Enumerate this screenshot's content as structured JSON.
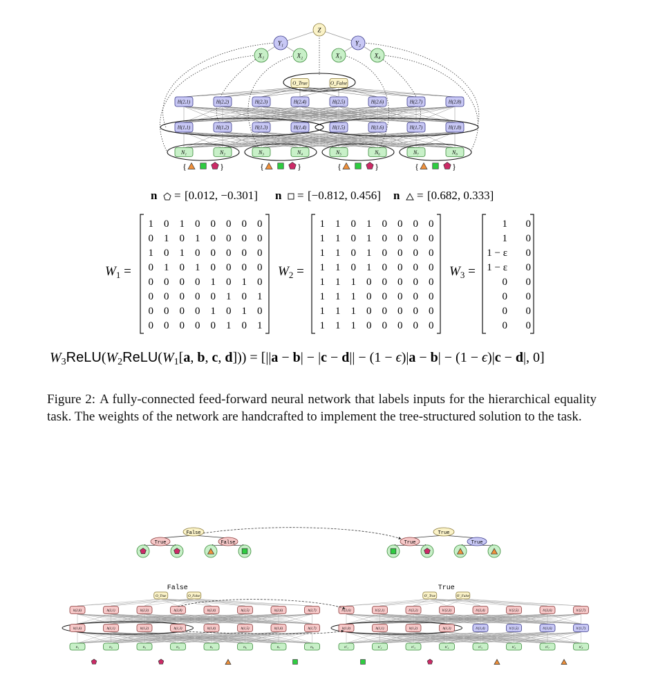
{
  "colors": {
    "green": "#c8f0c8",
    "green_stroke": "#3a8a3a",
    "blue": "#c8c8f5",
    "blue_stroke": "#3a3a8a",
    "yellow": "#fbf3c8",
    "yellow_stroke": "#8a7a3a",
    "pink": "#f6c8c8",
    "pink_stroke": "#8a3a3a",
    "triangle": "#f0903a",
    "square": "#2ecc40",
    "pentagon": "#cc2a66"
  },
  "top_graph": {
    "z": "Z",
    "y_nodes": [
      "Y₁",
      "Y₂"
    ],
    "x_nodes": [
      "X₁",
      "X₂",
      "X₃",
      "X₄"
    ],
    "outputs": [
      "O_True",
      "O_False"
    ],
    "h2": [
      "H(2,1)",
      "H(2,2)",
      "H(2,3)",
      "H(2,4)",
      "H(2,5)",
      "H(2,6)",
      "H(2,7)",
      "H(2,8)"
    ],
    "h1": [
      "H(1,1)",
      "H(1,2)",
      "H(1,3)",
      "H(1,4)",
      "H(1,5)",
      "H(1,6)",
      "H(1,7)",
      "H(1,8)"
    ],
    "inputs": [
      "N₁",
      "N₂",
      "N₃",
      "N₄",
      "N₅",
      "N₆",
      "N₇",
      "N₈"
    ],
    "shape_set": [
      "triangle",
      "square",
      "pentagon"
    ]
  },
  "embeddings": {
    "pentagon": "[0.012, −0.301]",
    "square": "[−0.812, 0.456]",
    "triangle": "[0.682, 0.333]"
  },
  "matrices": {
    "W1": [
      [
        "1",
        "0",
        "1",
        "0",
        "0",
        "0",
        "0",
        "0"
      ],
      [
        "0",
        "1",
        "0",
        "1",
        "0",
        "0",
        "0",
        "0"
      ],
      [
        "1",
        "0",
        "1",
        "0",
        "0",
        "0",
        "0",
        "0"
      ],
      [
        "0",
        "1",
        "0",
        "1",
        "0",
        "0",
        "0",
        "0"
      ],
      [
        "0",
        "0",
        "0",
        "0",
        "1",
        "0",
        "1",
        "0"
      ],
      [
        "0",
        "0",
        "0",
        "0",
        "0",
        "1",
        "0",
        "1"
      ],
      [
        "0",
        "0",
        "0",
        "0",
        "1",
        "0",
        "1",
        "0"
      ],
      [
        "0",
        "0",
        "0",
        "0",
        "0",
        "1",
        "0",
        "1"
      ]
    ],
    "W2": [
      [
        "1",
        "1",
        "0",
        "1",
        "0",
        "0",
        "0",
        "0"
      ],
      [
        "1",
        "1",
        "0",
        "1",
        "0",
        "0",
        "0",
        "0"
      ],
      [
        "1",
        "1",
        "0",
        "1",
        "0",
        "0",
        "0",
        "0"
      ],
      [
        "1",
        "1",
        "0",
        "1",
        "0",
        "0",
        "0",
        "0"
      ],
      [
        "1",
        "1",
        "1",
        "0",
        "0",
        "0",
        "0",
        "0"
      ],
      [
        "1",
        "1",
        "1",
        "0",
        "0",
        "0",
        "0",
        "0"
      ],
      [
        "1",
        "1",
        "1",
        "0",
        "0",
        "0",
        "0",
        "0"
      ],
      [
        "1",
        "1",
        "1",
        "0",
        "0",
        "0",
        "0",
        "0"
      ]
    ],
    "W3": [
      [
        "1",
        "0"
      ],
      [
        "1",
        "0"
      ],
      [
        "1 − ε",
        "0"
      ],
      [
        "1 − ε",
        "0"
      ],
      [
        "0",
        "0"
      ],
      [
        "0",
        "0"
      ],
      [
        "0",
        "0"
      ],
      [
        "0",
        "0"
      ]
    ]
  },
  "caption": {
    "label": "Figure 2:",
    "text": "A fully-connected feed-forward neural network that labels inputs for the hierarchical equality task. The weights of the network are handcrafted to implement the tree-structured solution to the task."
  },
  "bottom_left": {
    "tree_root": "False",
    "tree_mid": [
      "True",
      "False"
    ],
    "tree_leaves": [
      "pentagon",
      "pentagon",
      "triangle",
      "square"
    ],
    "net_label": "False",
    "outputs": [
      "O_True",
      "O_False"
    ],
    "h2": [
      "h(2,6)",
      "h(2,1)",
      "h(2,3)",
      "h(2,8)",
      "h(2,4)",
      "h(2,5)",
      "h(2,6)",
      "h(2,7)"
    ],
    "h1": [
      "h(1,6)",
      "h(1,1)",
      "h(1,2)",
      "h(1,3)",
      "h(1,4)",
      "h(1,5)",
      "h(1,6)",
      "h(1,7)"
    ],
    "inputs": [
      "n₁",
      "n₂",
      "n₃",
      "n₄",
      "n₅",
      "n₆",
      "n₇",
      "n₈"
    ],
    "input_shapes": [
      "pentagon",
      "pentagon",
      "triangle",
      "square"
    ]
  },
  "bottom_right": {
    "tree_root": "True",
    "tree_mid": [
      "True",
      "True"
    ],
    "tree_leaves": [
      "square",
      "pentagon",
      "triangle",
      "triangle"
    ],
    "net_label": "True",
    "outputs": [
      "O′_True",
      "O′_False"
    ],
    "h2": [
      "h′(2,6)",
      "h′(2,1)",
      "h′(2,2)",
      "h′(2,3)",
      "h′(2,4)",
      "h′(2,5)",
      "h′(2,6)",
      "h′(2,7)"
    ],
    "h1": [
      "h(1,0)",
      "h(1,1)",
      "h(1,2)",
      "h(1,3)",
      "h′(1,4)",
      "h′(1,5)",
      "h′(1,6)",
      "h′(1,7)"
    ],
    "inputs": [
      "n′₁",
      "n′₂",
      "n′₃",
      "n′₄",
      "n′₅",
      "n′₆",
      "n′₇",
      "n′₈"
    ],
    "input_shapes": [
      "square",
      "pentagon",
      "triangle",
      "triangle"
    ]
  }
}
